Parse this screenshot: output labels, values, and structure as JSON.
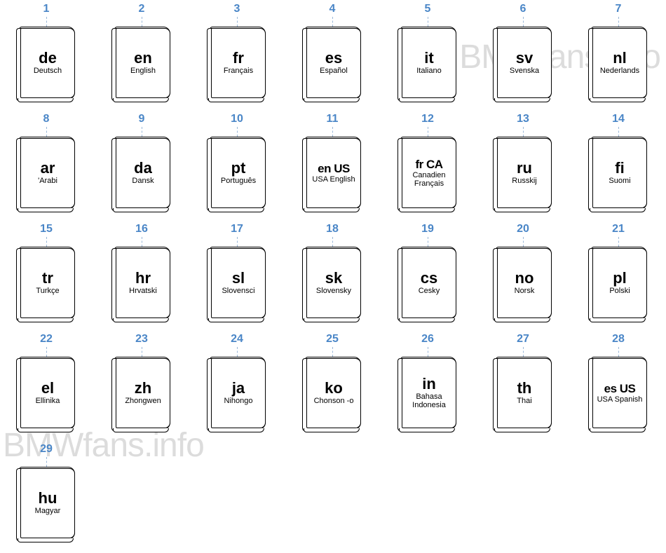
{
  "watermark_text": "BMWfans.info",
  "number_color": "#4a86c7",
  "leader_color": "#9bb8d8",
  "book_border_color": "#000000",
  "background_color": "#ffffff",
  "watermark_color": "#dcdcdc",
  "code_fontsize": 22,
  "code_fontsize_small": 17,
  "name_fontsize": 11,
  "number_fontsize": 16,
  "languages": [
    {
      "num": "1",
      "code": "de",
      "name": "Deutsch"
    },
    {
      "num": "2",
      "code": "en",
      "name": "English"
    },
    {
      "num": "3",
      "code": "fr",
      "name": "Français"
    },
    {
      "num": "4",
      "code": "es",
      "name": "Español"
    },
    {
      "num": "5",
      "code": "it",
      "name": "Italiano"
    },
    {
      "num": "6",
      "code": "sv",
      "name": "Svenska"
    },
    {
      "num": "7",
      "code": "nl",
      "name": "Nederlands"
    },
    {
      "num": "8",
      "code": "ar",
      "name": "'Arabi"
    },
    {
      "num": "9",
      "code": "da",
      "name": "Dansk"
    },
    {
      "num": "10",
      "code": "pt",
      "name": "Português"
    },
    {
      "num": "11",
      "code": "en US",
      "name": "USA English",
      "small": true
    },
    {
      "num": "12",
      "code": "fr CA",
      "name": "Canadien Français",
      "small": true
    },
    {
      "num": "13",
      "code": "ru",
      "name": "Russkij"
    },
    {
      "num": "14",
      "code": "fi",
      "name": "Suomi"
    },
    {
      "num": "15",
      "code": "tr",
      "name": "Turkçe"
    },
    {
      "num": "16",
      "code": "hr",
      "name": "Hrvatski"
    },
    {
      "num": "17",
      "code": "sl",
      "name": "Slovensci"
    },
    {
      "num": "18",
      "code": "sk",
      "name": "Slovensky"
    },
    {
      "num": "19",
      "code": "cs",
      "name": "Cesky"
    },
    {
      "num": "20",
      "code": "no",
      "name": "Norsk"
    },
    {
      "num": "21",
      "code": "pl",
      "name": "Polski"
    },
    {
      "num": "22",
      "code": "el",
      "name": "Ellinika"
    },
    {
      "num": "23",
      "code": "zh",
      "name": "Zhongwen"
    },
    {
      "num": "24",
      "code": "ja",
      "name": "Nihongo"
    },
    {
      "num": "25",
      "code": "ko",
      "name": "Chonson -o"
    },
    {
      "num": "26",
      "code": "in",
      "name": "Bahasa Indonesia"
    },
    {
      "num": "27",
      "code": "th",
      "name": "Thai"
    },
    {
      "num": "28",
      "code": "es US",
      "name": "USA Spanish",
      "small": true
    },
    {
      "num": "29",
      "code": "hu",
      "name": "Magyar"
    }
  ]
}
